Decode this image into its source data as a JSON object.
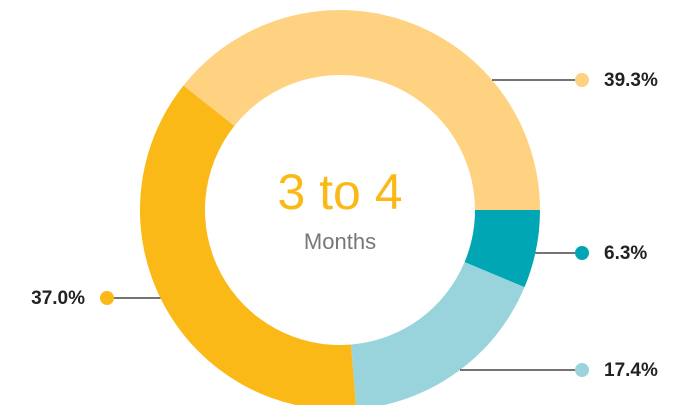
{
  "chart_data": {
    "type": "pie",
    "donut": true,
    "center_title": "3 to 4",
    "center_subtitle": "Months",
    "values": [
      39.3,
      6.3,
      17.4,
      37.0
    ],
    "value_labels": [
      "39.3%",
      "6.3%",
      "17.4%",
      "37.0%"
    ],
    "colors": [
      "#fed280",
      "#00a6b4",
      "#99d4dc",
      "#fbb917"
    ]
  }
}
